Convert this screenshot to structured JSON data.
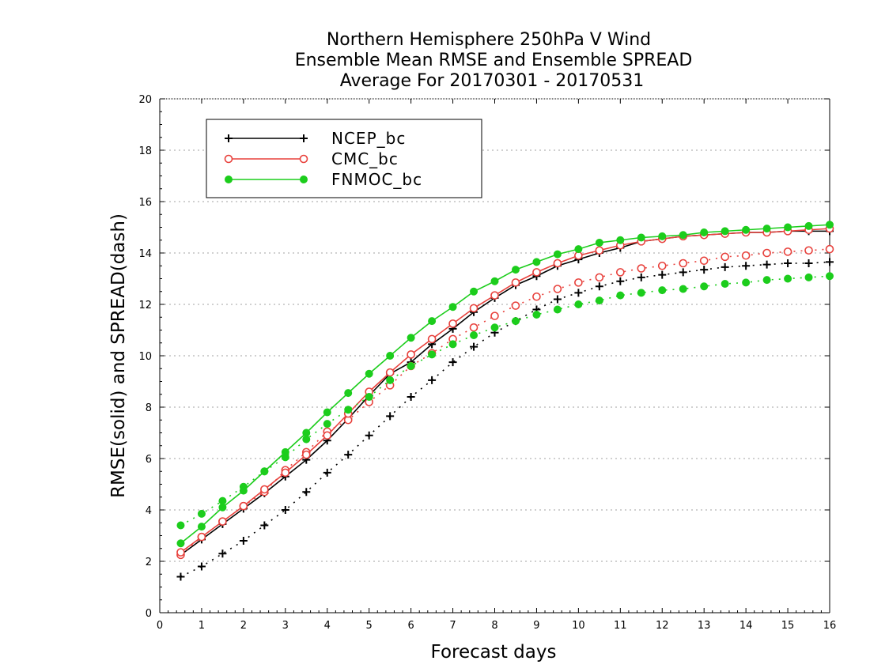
{
  "chart_data": {
    "type": "line",
    "title": [
      "Northern Hemisphere 250hPa V Wind",
      "Ensemble Mean RMSE and Ensemble SPREAD",
      "Average For 20170301 - 20170531"
    ],
    "xlabel": "Forecast days",
    "ylabel": "RMSE(solid) and SPREAD(dash)",
    "xlim": [
      0,
      16
    ],
    "ylim": [
      0,
      20
    ],
    "xticks": [
      "0",
      "1",
      "2",
      "3",
      "4",
      "5",
      "6",
      "7",
      "8",
      "9",
      "10",
      "11",
      "12",
      "13",
      "14",
      "15",
      "16"
    ],
    "yticks": [
      "0",
      "2",
      "4",
      "6",
      "8",
      "10",
      "12",
      "14",
      "16",
      "18",
      "20"
    ],
    "grid": "horizontal-dotted",
    "legend_position": "top-left",
    "x": [
      0.5,
      1,
      1.5,
      2,
      2.5,
      3,
      3.5,
      4,
      4.5,
      5,
      5.5,
      6,
      6.5,
      7,
      7.5,
      8,
      8.5,
      9,
      9.5,
      10,
      10.5,
      11,
      11.5,
      12,
      12.5,
      13,
      13.5,
      14,
      14.5,
      15,
      15.5,
      16
    ],
    "series": [
      {
        "name": "NCEP_bc",
        "color": "#000000",
        "marker": "plus",
        "rmse": [
          2.25,
          2.85,
          3.45,
          4.05,
          4.65,
          5.3,
          5.95,
          6.7,
          7.55,
          8.45,
          9.3,
          9.75,
          10.45,
          11.05,
          11.7,
          12.25,
          12.75,
          13.1,
          13.5,
          13.75,
          14.0,
          14.2,
          14.45,
          14.55,
          14.65,
          14.7,
          14.75,
          14.8,
          14.8,
          14.85,
          14.85,
          14.85
        ],
        "spread": [
          1.4,
          1.8,
          2.3,
          2.8,
          3.4,
          4.0,
          4.7,
          5.45,
          6.15,
          6.9,
          7.65,
          8.4,
          9.05,
          9.75,
          10.35,
          10.9,
          11.35,
          11.8,
          12.2,
          12.45,
          12.7,
          12.9,
          13.05,
          13.15,
          13.25,
          13.35,
          13.45,
          13.5,
          13.55,
          13.6,
          13.6,
          13.65
        ]
      },
      {
        "name": "CMC_bc",
        "color": "#e8413c",
        "marker": "open-circle",
        "rmse": [
          2.35,
          2.95,
          3.55,
          4.15,
          4.8,
          5.45,
          6.15,
          6.9,
          7.75,
          8.6,
          9.35,
          10.05,
          10.65,
          11.25,
          11.85,
          12.35,
          12.85,
          13.25,
          13.6,
          13.9,
          14.1,
          14.3,
          14.45,
          14.55,
          14.65,
          14.7,
          14.75,
          14.8,
          14.8,
          14.85,
          14.9,
          14.95
        ],
        "spread": [
          2.25,
          2.95,
          3.55,
          4.15,
          4.7,
          5.55,
          6.25,
          7.05,
          7.5,
          8.2,
          8.85,
          9.6,
          10.1,
          10.65,
          11.1,
          11.55,
          11.95,
          12.3,
          12.6,
          12.85,
          13.05,
          13.25,
          13.4,
          13.5,
          13.6,
          13.7,
          13.85,
          13.9,
          14.0,
          14.05,
          14.1,
          14.15
        ]
      },
      {
        "name": "FNMOC_bc",
        "color": "#1ccd1c",
        "marker": "filled-circle",
        "rmse": [
          2.7,
          3.35,
          4.1,
          4.75,
          5.5,
          6.25,
          7.0,
          7.8,
          8.55,
          9.3,
          10.0,
          10.7,
          11.35,
          11.9,
          12.5,
          12.9,
          13.35,
          13.65,
          13.95,
          14.15,
          14.4,
          14.5,
          14.6,
          14.65,
          14.7,
          14.8,
          14.85,
          14.9,
          14.95,
          15.0,
          15.05,
          15.1
        ],
        "spread": [
          3.4,
          3.85,
          4.35,
          4.9,
          5.5,
          6.05,
          6.75,
          7.35,
          7.9,
          8.4,
          9.05,
          9.6,
          10.05,
          10.45,
          10.8,
          11.1,
          11.35,
          11.6,
          11.8,
          12.0,
          12.15,
          12.35,
          12.45,
          12.55,
          12.6,
          12.7,
          12.8,
          12.85,
          12.95,
          13.0,
          13.05,
          13.1
        ]
      }
    ]
  }
}
